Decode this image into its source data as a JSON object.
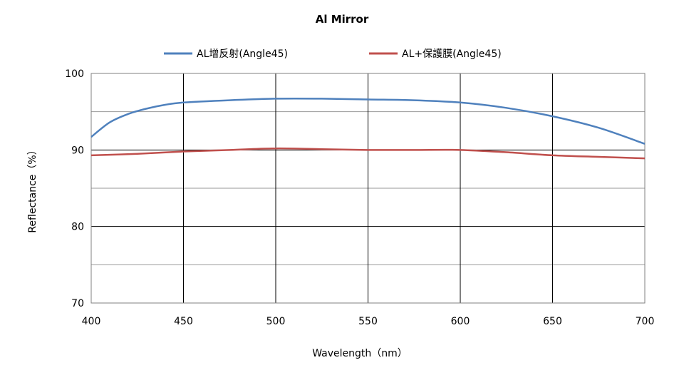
{
  "chart_data": {
    "type": "line",
    "title": "Al Mirror",
    "xlabel": "Wavelength（nm）",
    "ylabel": "Reflectance（%）",
    "xlim": [
      400,
      700
    ],
    "ylim": [
      70,
      100
    ],
    "x_ticks": [
      "400",
      "450",
      "500",
      "550",
      "600",
      "650",
      "700"
    ],
    "y_ticks": [
      "70",
      "80",
      "90",
      "100"
    ],
    "grid": true,
    "legend_position": "top",
    "series": [
      {
        "name": "AL增反射(Angle45)",
        "color": "#4f81bd",
        "x": [
          400,
          410,
          420,
          430,
          440,
          450,
          475,
          500,
          525,
          550,
          575,
          600,
          625,
          650,
          675,
          700
        ],
        "y": [
          91.7,
          93.6,
          94.7,
          95.4,
          95.9,
          96.2,
          96.5,
          96.7,
          96.7,
          96.6,
          96.5,
          96.2,
          95.5,
          94.4,
          92.9,
          90.8
        ]
      },
      {
        "name": "AL+保護膜(Angle45)",
        "color": "#c0504d",
        "x": [
          400,
          425,
          450,
          475,
          500,
          525,
          550,
          575,
          600,
          625,
          650,
          675,
          700
        ],
        "y": [
          89.3,
          89.5,
          89.8,
          90.0,
          90.2,
          90.1,
          90.0,
          90.0,
          90.0,
          89.7,
          89.3,
          89.1,
          88.9
        ]
      }
    ]
  }
}
